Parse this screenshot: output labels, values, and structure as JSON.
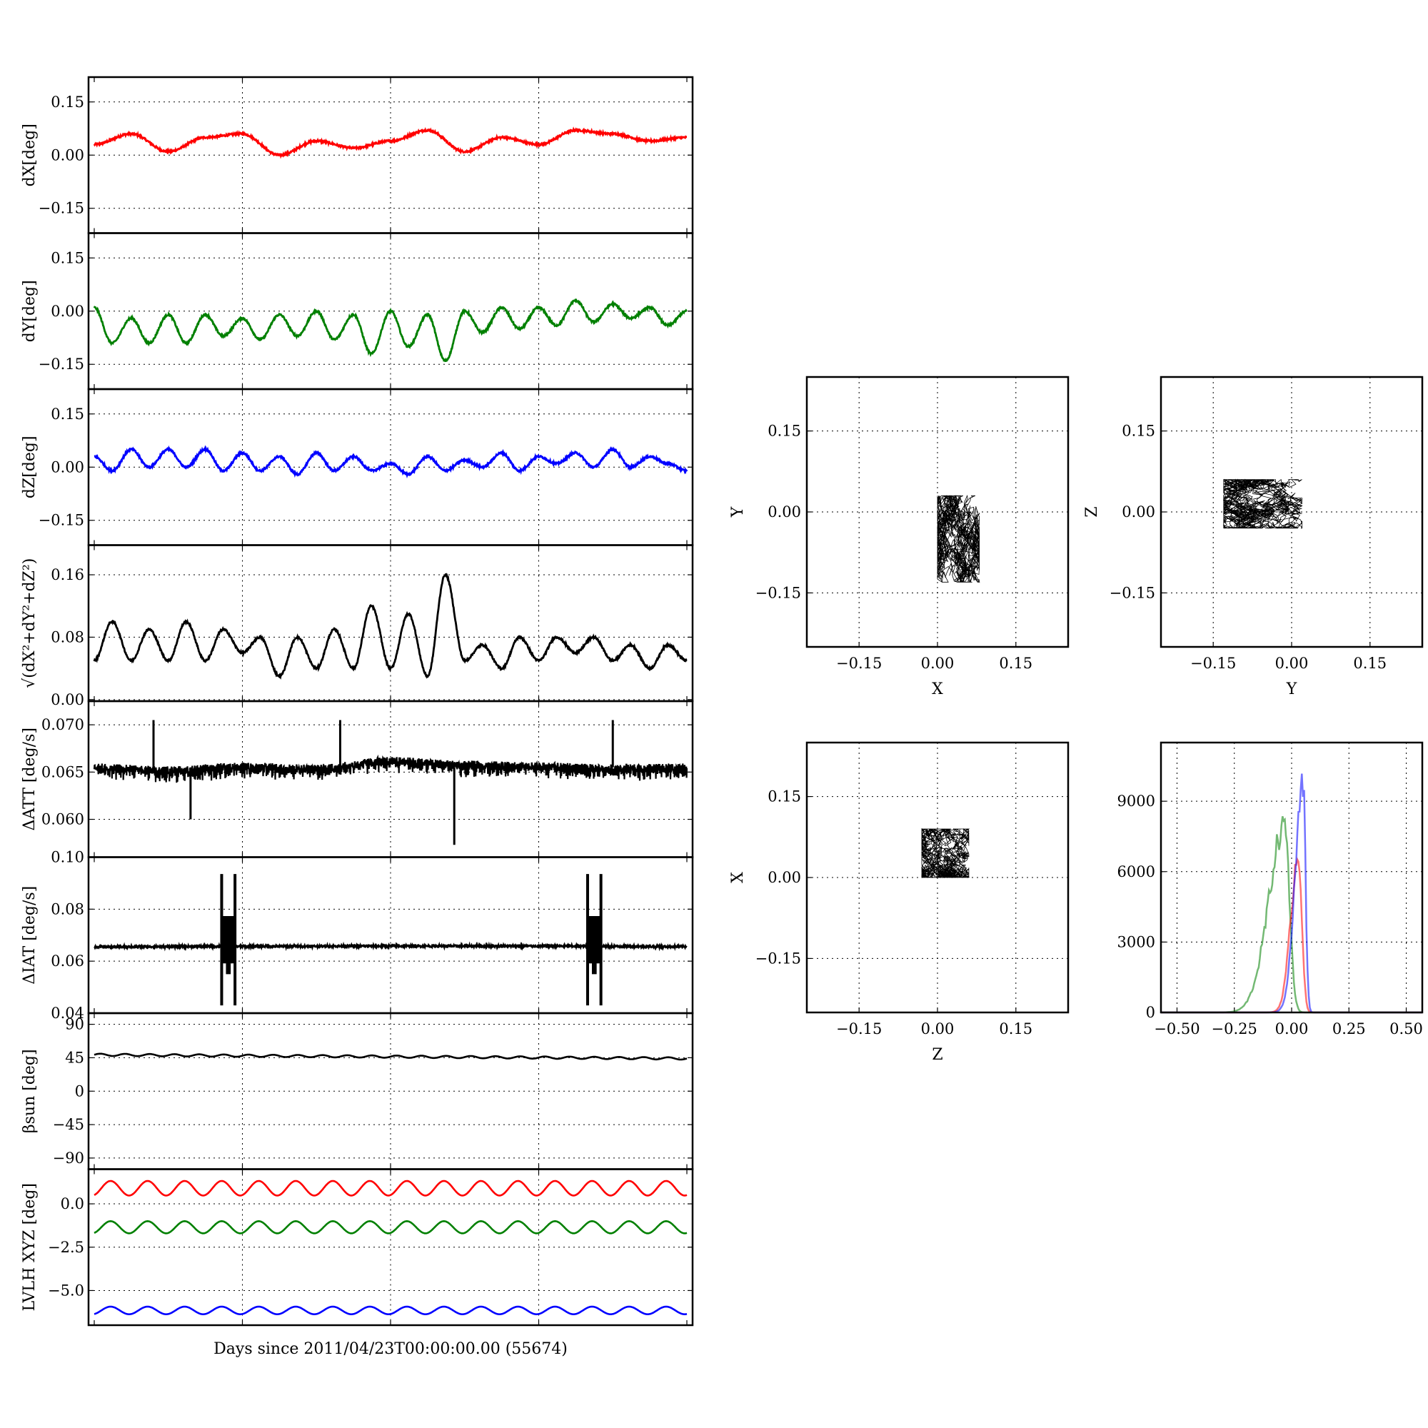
{
  "figure": {
    "xlabel": "Days since 2011/04/23T00:00:00.00 (55674)"
  },
  "chart_data": [
    {
      "id": "dX",
      "type": "line",
      "ylabel": "dX[deg]",
      "ylim": [
        -0.22,
        0.22
      ],
      "yticks": [
        -0.15,
        0.0,
        0.15
      ],
      "ytick_labels": [
        "−0.15",
        "0.00",
        "0.15"
      ],
      "grid": true,
      "x_range_days": [
        0,
        4
      ],
      "color": "#ff0000",
      "series": [
        {
          "x": [
            0,
            0.25,
            0.5,
            0.75,
            1.0,
            1.25,
            1.5,
            1.75,
            2.0,
            2.25,
            2.5,
            2.75,
            3.0,
            3.25,
            3.5,
            3.75,
            4.0
          ],
          "values": [
            0.03,
            0.06,
            0.01,
            0.05,
            0.06,
            0.0,
            0.04,
            0.02,
            0.04,
            0.07,
            0.01,
            0.05,
            0.03,
            0.07,
            0.06,
            0.04,
            0.05
          ]
        }
      ]
    },
    {
      "id": "dY",
      "type": "line",
      "ylabel": "dY[deg]",
      "ylim": [
        -0.22,
        0.22
      ],
      "yticks": [
        -0.15,
        0.0,
        0.15
      ],
      "ytick_labels": [
        "−0.15",
        "0.00",
        "0.15"
      ],
      "grid": true,
      "x_range_days": [
        0,
        4
      ],
      "color": "#008000",
      "series": [
        {
          "x": [
            0,
            0.12,
            0.25,
            0.37,
            0.5,
            0.62,
            0.75,
            0.87,
            1.0,
            1.12,
            1.25,
            1.37,
            1.5,
            1.62,
            1.75,
            1.87,
            2.0,
            2.12,
            2.25,
            2.37,
            2.5,
            2.62,
            2.75,
            2.87,
            3.0,
            3.12,
            3.25,
            3.37,
            3.5,
            3.62,
            3.75,
            3.87,
            4.0
          ],
          "values": [
            0.01,
            -0.09,
            -0.02,
            -0.09,
            -0.01,
            -0.09,
            -0.01,
            -0.07,
            -0.02,
            -0.08,
            -0.01,
            -0.07,
            0.0,
            -0.08,
            -0.01,
            -0.12,
            0.0,
            -0.1,
            -0.01,
            -0.14,
            0.0,
            -0.06,
            0.01,
            -0.05,
            0.01,
            -0.04,
            0.03,
            -0.03,
            0.02,
            -0.02,
            0.01,
            -0.04,
            0.0
          ]
        }
      ]
    },
    {
      "id": "dZ",
      "type": "line",
      "ylabel": "dZ[deg]",
      "ylim": [
        -0.22,
        0.22
      ],
      "yticks": [
        -0.15,
        0.0,
        0.15
      ],
      "ytick_labels": [
        "−0.15",
        "0.00",
        "0.15"
      ],
      "grid": true,
      "x_range_days": [
        0,
        4
      ],
      "color": "#0000ff",
      "series": [
        {
          "x": [
            0,
            0.12,
            0.25,
            0.37,
            0.5,
            0.62,
            0.75,
            0.87,
            1.0,
            1.12,
            1.25,
            1.37,
            1.5,
            1.62,
            1.75,
            1.87,
            2.0,
            2.12,
            2.25,
            2.37,
            2.5,
            2.62,
            2.75,
            2.87,
            3.0,
            3.12,
            3.25,
            3.37,
            3.5,
            3.62,
            3.75,
            3.87,
            4.0
          ],
          "values": [
            0.03,
            -0.01,
            0.05,
            0.0,
            0.05,
            0.0,
            0.05,
            -0.01,
            0.04,
            -0.01,
            0.03,
            -0.02,
            0.04,
            -0.01,
            0.03,
            -0.01,
            0.01,
            -0.02,
            0.03,
            -0.01,
            0.02,
            0.0,
            0.04,
            -0.01,
            0.03,
            0.01,
            0.04,
            0.0,
            0.05,
            0.0,
            0.03,
            0.01,
            -0.01
          ]
        }
      ]
    },
    {
      "id": "dR",
      "type": "line",
      "ylabel": "√(dX²+dY²+dZ²)",
      "ylim": [
        -0.002,
        0.198
      ],
      "yticks": [
        0.0,
        0.08,
        0.16
      ],
      "ytick_labels": [
        "0.00",
        "0.08",
        "0.16"
      ],
      "grid": true,
      "x_range_days": [
        0,
        4
      ],
      "color": "#000000",
      "series": [
        {
          "x": [
            0,
            0.12,
            0.25,
            0.37,
            0.5,
            0.62,
            0.75,
            0.87,
            1.0,
            1.12,
            1.25,
            1.37,
            1.5,
            1.62,
            1.75,
            1.87,
            2.0,
            2.12,
            2.25,
            2.37,
            2.5,
            2.62,
            2.75,
            2.87,
            3.0,
            3.12,
            3.25,
            3.37,
            3.5,
            3.62,
            3.75,
            3.87,
            4.0
          ],
          "values": [
            0.05,
            0.1,
            0.05,
            0.09,
            0.05,
            0.1,
            0.05,
            0.09,
            0.06,
            0.08,
            0.03,
            0.08,
            0.04,
            0.09,
            0.04,
            0.12,
            0.04,
            0.11,
            0.03,
            0.16,
            0.05,
            0.07,
            0.04,
            0.08,
            0.05,
            0.08,
            0.06,
            0.08,
            0.05,
            0.07,
            0.04,
            0.07,
            0.05
          ]
        }
      ]
    },
    {
      "id": "dATT",
      "type": "line",
      "ylabel": "ΔATT [deg/s]",
      "ylim": [
        0.056,
        0.0725
      ],
      "yticks": [
        0.06,
        0.065,
        0.07
      ],
      "ytick_labels": [
        "0.060",
        "0.065",
        "0.070"
      ],
      "grid": true,
      "x_range_days": [
        0,
        4
      ],
      "color": "#000000",
      "series": [
        {
          "x": [
            0,
            0.5,
            1.0,
            1.5,
            2.0,
            2.5,
            3.0,
            3.5,
            4.0
          ],
          "values": [
            0.0655,
            0.0652,
            0.0656,
            0.0654,
            0.0662,
            0.0658,
            0.0656,
            0.0654,
            0.0655
          ]
        }
      ],
      "spikes": [
        {
          "x": 0.4,
          "value": 0.0705
        },
        {
          "x": 0.65,
          "value": 0.06
        },
        {
          "x": 1.66,
          "value": 0.0705
        },
        {
          "x": 2.43,
          "value": 0.0573
        },
        {
          "x": 3.5,
          "value": 0.0705
        }
      ]
    },
    {
      "id": "dIAT",
      "type": "line",
      "ylabel": "ΔIAT [deg/s]",
      "ylim": [
        0.04,
        0.1
      ],
      "yticks": [
        0.04,
        0.06,
        0.08,
        0.1
      ],
      "ytick_labels": [
        "0.04",
        "0.06",
        "0.08",
        "0.10"
      ],
      "grid": true,
      "x_range_days": [
        0,
        4
      ],
      "color": "#000000",
      "series": [
        {
          "x": [
            0,
            1.0,
            2.0,
            3.0,
            4.0
          ],
          "values": [
            0.0655,
            0.0657,
            0.0658,
            0.0658,
            0.0656
          ]
        }
      ],
      "bursts": [
        {
          "x": [
            0.86,
            0.95
          ],
          "ymin": 0.043,
          "ymax": 0.0935
        },
        {
          "x": [
            3.33,
            3.42
          ],
          "ymin": 0.043,
          "ymax": 0.0935
        }
      ]
    },
    {
      "id": "beta",
      "type": "line",
      "ylabel": "βsun [deg]",
      "ylim": [
        -105,
        105
      ],
      "yticks": [
        -90,
        -45,
        0,
        45,
        90
      ],
      "ytick_labels": [
        "−90",
        "−45",
        "0",
        "45",
        "90"
      ],
      "grid": true,
      "x_range_days": [
        0,
        4
      ],
      "color": "#000000",
      "series": [
        {
          "x": [
            0,
            4
          ],
          "values": [
            49,
            44
          ],
          "oscillation_amplitude": 1.5,
          "cycles": 24
        }
      ]
    },
    {
      "id": "lvlh",
      "type": "line",
      "ylabel": "LVLH XYZ [deg]",
      "ylim": [
        -7.0,
        2.0
      ],
      "yticks": [
        -5.0,
        -2.5,
        0.0
      ],
      "ytick_labels": [
        "−5.0",
        "−2.5",
        "0.0"
      ],
      "grid": true,
      "x_range_days": [
        0,
        4
      ],
      "series": [
        {
          "color": "#ff0000",
          "mean": 0.9,
          "amplitude": 0.42,
          "cycles": 16
        },
        {
          "color": "#008000",
          "mean": -1.35,
          "amplitude": 0.35,
          "cycles": 16
        },
        {
          "color": "#0000ff",
          "mean": -6.15,
          "amplitude": 0.22,
          "cycles": 16
        }
      ]
    },
    {
      "id": "scatter_xy",
      "type": "scatter",
      "xlabel": "X",
      "ylabel": "Y",
      "xlim": [
        -0.25,
        0.25
      ],
      "ylim": [
        -0.25,
        0.25
      ],
      "ticks": [
        -0.15,
        0.0,
        0.15
      ],
      "tick_labels": [
        "−0.15",
        "0.00",
        "0.15"
      ],
      "grid": true,
      "cluster": {
        "x": [
          0.0,
          0.08
        ],
        "y": [
          -0.13,
          0.03
        ]
      }
    },
    {
      "id": "scatter_yz",
      "type": "scatter",
      "xlabel": "Y",
      "ylabel": "Z",
      "xlim": [
        -0.25,
        0.25
      ],
      "ylim": [
        -0.25,
        0.25
      ],
      "ticks": [
        -0.15,
        0.0,
        0.15
      ],
      "tick_labels": [
        "−0.15",
        "0.00",
        "0.15"
      ],
      "grid": true,
      "cluster": {
        "x": [
          -0.13,
          0.02
        ],
        "y": [
          -0.03,
          0.06
        ]
      }
    },
    {
      "id": "scatter_zx",
      "type": "scatter",
      "xlabel": "Z",
      "ylabel": "X",
      "xlim": [
        -0.25,
        0.25
      ],
      "ylim": [
        -0.25,
        0.25
      ],
      "ticks": [
        -0.15,
        0.0,
        0.15
      ],
      "tick_labels": [
        "−0.15",
        "0.00",
        "0.15"
      ],
      "grid": true,
      "cluster": {
        "x": [
          -0.03,
          0.06
        ],
        "y": [
          0.0,
          0.09
        ]
      }
    },
    {
      "id": "histogram",
      "type": "bar",
      "xlim": [
        -0.57,
        0.57
      ],
      "ylim": [
        0,
        11500
      ],
      "xticks": [
        -0.5,
        -0.25,
        0.0,
        0.25,
        0.5
      ],
      "xtick_labels": [
        "−0.50",
        "−0.25",
        "0.00",
        "0.25",
        "0.50"
      ],
      "yticks": [
        0,
        3000,
        6000,
        9000
      ],
      "ytick_labels": [
        "0",
        "3000",
        "6000",
        "9000"
      ],
      "grid": true,
      "series": [
        {
          "color": "#008000",
          "center": -0.03,
          "peak": 8600,
          "width": 0.05,
          "tail_left": 0.12
        },
        {
          "color": "#ff0000",
          "center": 0.03,
          "peak": 7300,
          "width": 0.035,
          "tail_left": 0.03
        },
        {
          "color": "#0000ff",
          "center": 0.05,
          "peak": 10500,
          "width": 0.025,
          "tail_left": 0.06
        }
      ]
    }
  ]
}
